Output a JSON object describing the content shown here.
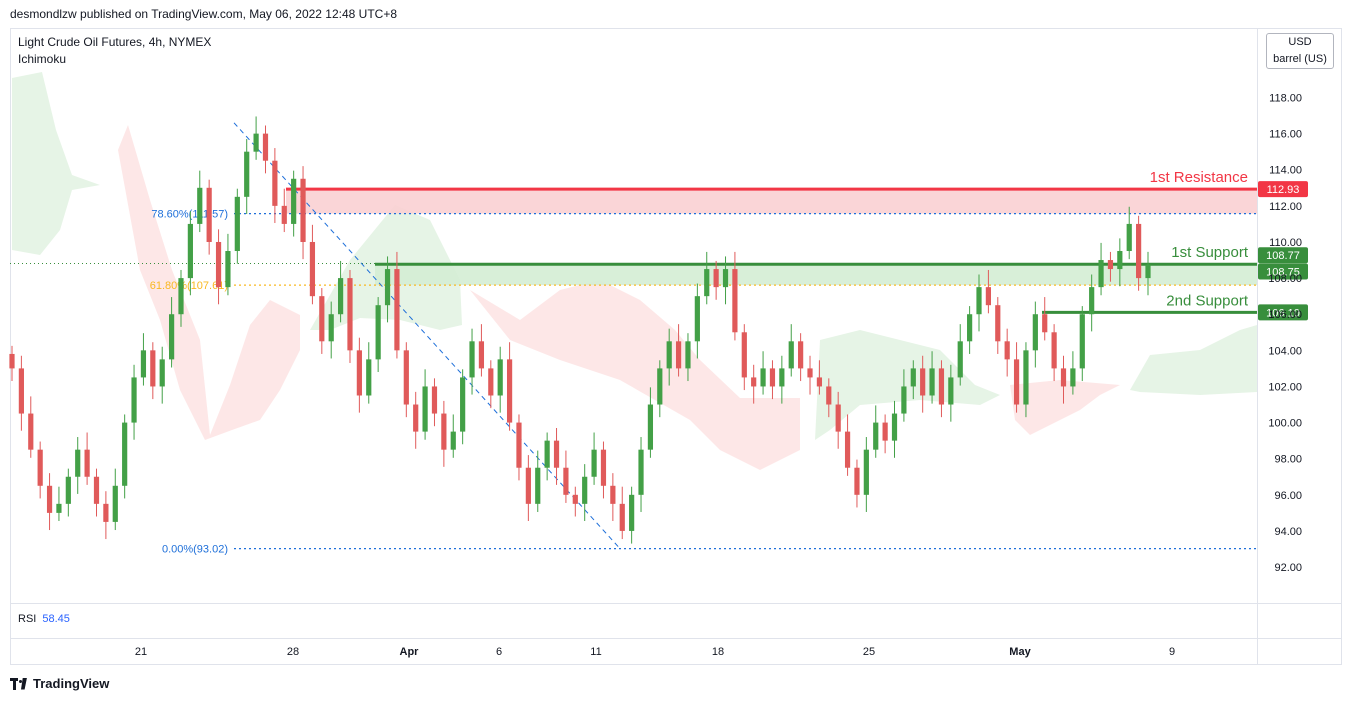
{
  "header": {
    "publisher": "desmondlzw published on TradingView.com, May 06, 2022 12:48 UTC+8"
  },
  "legend": {
    "symbol": "Light Crude Oil Futures, 4h, NYMEX",
    "indicator": "Ichimoku"
  },
  "currency": {
    "code": "USD",
    "unit": "barrel (US)"
  },
  "rsi": {
    "label": "RSI",
    "value": "58.45"
  },
  "footer": {
    "brand": "TradingView"
  },
  "colors": {
    "bull": "#43a047",
    "bear": "#e05a5a",
    "resistance": "#f23645",
    "support": "#388e3c",
    "fib_blue": "#1e6fd9",
    "fib_orange": "#f9b820",
    "cloud_bull": "#e3f3e3",
    "cloud_bear": "#fde4e4"
  },
  "chart_data": {
    "type": "candlestick",
    "title": "Light Crude Oil Futures, 4h, NYMEX",
    "ylim": [
      90,
      119
    ],
    "y_ticks": [
      "92.00",
      "94.00",
      "96.00",
      "98.00",
      "100.00",
      "102.00",
      "104.00",
      "106.00",
      "108.00",
      "110.00",
      "112.00",
      "114.00",
      "116.00",
      "118.00"
    ],
    "x_ticks": [
      "21",
      "28",
      "Apr",
      "6",
      "11",
      "18",
      "25",
      "May",
      "9"
    ],
    "levels": [
      {
        "name": "1st Resistance",
        "value": 112.93,
        "price_label": "112.93",
        "kind": "resistance"
      },
      {
        "name": "1st Support",
        "value": 108.77,
        "price_label": "108.77",
        "kind": "support"
      },
      {
        "name": "2nd Support",
        "value": 106.1,
        "price_label": "106.10",
        "kind": "support"
      }
    ],
    "last_price": {
      "value": 108.75,
      "label": "108.75"
    },
    "fibonacci": [
      {
        "label": "78.60%(111.57)",
        "value": 111.57
      },
      {
        "label": "61.80%(107.61)",
        "value": 107.61
      },
      {
        "label": "0.00%(93.02)",
        "value": 93.02
      }
    ],
    "closes": [
      103,
      100.5,
      98.5,
      96.5,
      95,
      95.5,
      97,
      98.5,
      97,
      95.5,
      94.5,
      96.5,
      100,
      102.5,
      104,
      102,
      103.5,
      106,
      108,
      111,
      113,
      110,
      107.5,
      109.5,
      112.5,
      115,
      116,
      114.5,
      112,
      111,
      113.5,
      110,
      107,
      104.5,
      106,
      108,
      104,
      101.5,
      103.5,
      106.5,
      108.5,
      104,
      101,
      99.5,
      102,
      100.5,
      98.5,
      99.5,
      102.5,
      104.5,
      103,
      101.5,
      103.5,
      100,
      97.5,
      95.5,
      97.5,
      99,
      97.5,
      96,
      95.5,
      97,
      98.5,
      96.5,
      95.5,
      94,
      96,
      98.5,
      101,
      103,
      104.5,
      103,
      104.5,
      107,
      108.5,
      107.5,
      108.5,
      105,
      102.5,
      102,
      103,
      102,
      103,
      104.5,
      103,
      102.5,
      102,
      101,
      99.5,
      97.5,
      96,
      98.5,
      100,
      99,
      100.5,
      102,
      103,
      101.5,
      103,
      101,
      102.5,
      104.5,
      106,
      107.5,
      106.5,
      104.5,
      103.5,
      101,
      104,
      106,
      105,
      103,
      102,
      103,
      106,
      107.5,
      109,
      108.5,
      109.5,
      111,
      108,
      108.75
    ]
  }
}
